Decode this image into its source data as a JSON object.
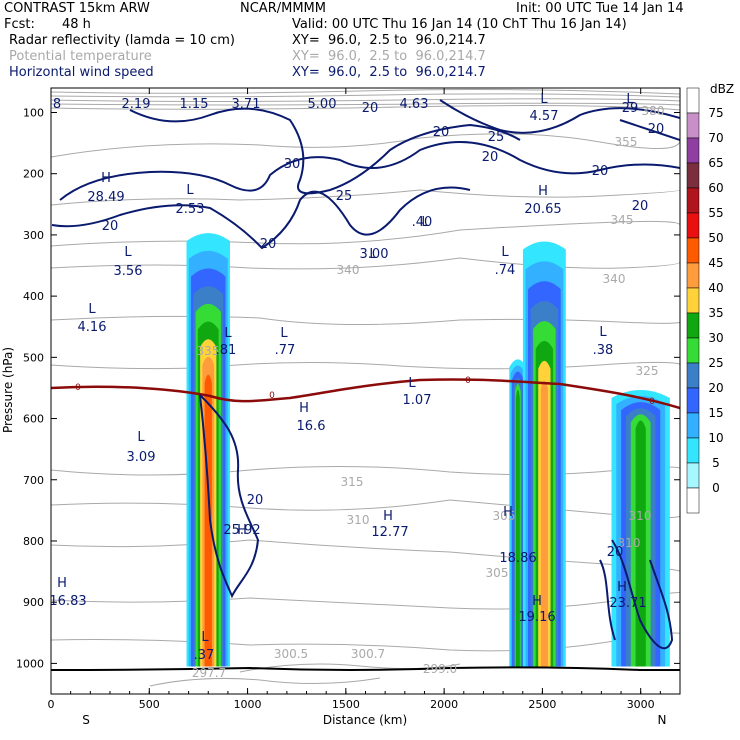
{
  "header": {
    "model": "CONTRAST 15km ARW",
    "center": "NCAR/MMMM",
    "init": "Init: 00 UTC Tue 14 Jan 14",
    "fcst_label": "Fcst:",
    "fcst_value": "48 h",
    "valid": "Valid: 00 UTC Thu 16 Jan 14 (10 ChT Thu 16 Jan 14)",
    "fields": [
      {
        "name": "Radar reflectivity (lamda = 10 cm)",
        "xy": "XY=  96.0,  2.5 to  96.0,214.7",
        "color": "#000000"
      },
      {
        "name": "Potential temperature",
        "xy": "XY=  96.0,  2.5 to  96.0,214.7",
        "color": "#a9a9a9"
      },
      {
        "name": "Horizontal wind speed",
        "xy": "XY=  96.0,  2.5 to  96.0,214.7",
        "color": "#0a1a6e"
      }
    ]
  },
  "chart_data": {
    "type": "heatmap",
    "xlabel": "Distance (km)",
    "ylabel": "Pressure (hPa)",
    "xlim": [
      0,
      3200
    ],
    "ylim": [
      1050,
      60
    ],
    "x_ticks": [
      0,
      500,
      1000,
      1500,
      2000,
      2500,
      3000
    ],
    "y_ticks": [
      100,
      200,
      300,
      400,
      500,
      600,
      700,
      800,
      900,
      1000
    ],
    "endpoints": {
      "left": "S",
      "right": "N"
    },
    "colorbar": {
      "unit": "dBZ",
      "levels": [
        75,
        70,
        65,
        60,
        55,
        50,
        45,
        40,
        35,
        30,
        25,
        20,
        15,
        10,
        5,
        0
      ],
      "colors": [
        "#ffffff",
        "#c98fc9",
        "#8e3fa0",
        "#7a2e3e",
        "#b0141c",
        "#e81010",
        "#ff5a00",
        "#ff9c3c",
        "#ffd23a",
        "#10a810",
        "#35dc35",
        "#3a7fc8",
        "#3366ff",
        "#33b0ff",
        "#33e5ff",
        "#a6f7ff"
      ]
    },
    "reflectivity_cells": [
      {
        "x_km": 800,
        "top_hpa": 265,
        "max_dbz": 45
      },
      {
        "x_km": 2375,
        "top_hpa": 490,
        "max_dbz": 30
      },
      {
        "x_km": 2510,
        "top_hpa": 275,
        "max_dbz": 40
      },
      {
        "x_km": 3000,
        "top_hpa": 540,
        "max_dbz": 30
      }
    ],
    "freezing_level_label": "0",
    "theta_labels": [
      "380",
      "355",
      "345",
      "340",
      "340",
      "335",
      "325",
      "315",
      "310",
      "305",
      "305",
      "310",
      "310",
      "300.5",
      "300.7",
      "299.0",
      "297.7"
    ],
    "wind_contour_labels": [
      "8",
      "20",
      "20",
      "25",
      "20",
      "20",
      "20",
      "30",
      "25",
      "20",
      "20",
      "20",
      "20",
      "20"
    ],
    "extrema": [
      {
        "kind": "H",
        "value": "28.49"
      },
      {
        "kind": "L",
        "value": "2.53"
      },
      {
        "kind": "L",
        "value": "3.56"
      },
      {
        "kind": "L",
        "value": "4.16"
      },
      {
        "kind": "L",
        "value": "3.09"
      },
      {
        "kind": "H",
        "value": "16.83"
      },
      {
        "kind": "L",
        "value": ".81"
      },
      {
        "kind": "L",
        "value": ".77"
      },
      {
        "kind": "H",
        "value": "16.6"
      },
      {
        "kind": "L",
        "value": "1.07"
      },
      {
        "kind": "L",
        "value": "3.00"
      },
      {
        "kind": "L",
        "value": ".40"
      },
      {
        "kind": "L",
        "value": ".74"
      },
      {
        "kind": "H",
        "value": "20.65"
      },
      {
        "kind": "L",
        "value": ".38"
      },
      {
        "kind": "H",
        "value": "25.92"
      },
      {
        "kind": "H",
        "value": "12.77"
      },
      {
        "kind": "H",
        "value": "18.86"
      },
      {
        "kind": "H",
        "value": "19.16"
      },
      {
        "kind": "H",
        "value": "23.71"
      },
      {
        "kind": "L",
        "value": ".37"
      },
      {
        "kind": "L",
        "value": "4.57"
      },
      {
        "kind": "L",
        "value": "29"
      }
    ],
    "top_values": [
      "2.19",
      "1.15",
      "3.71",
      "5.00",
      "4.63"
    ]
  }
}
